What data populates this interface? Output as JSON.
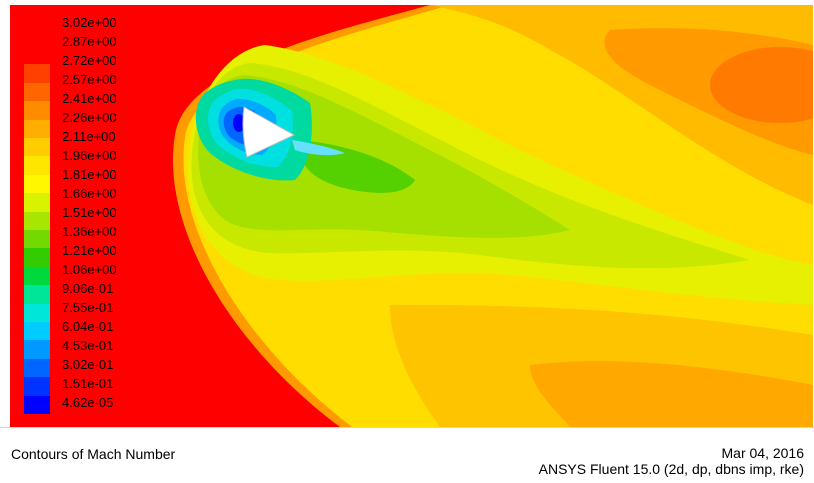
{
  "viewport": {
    "legend": {
      "levels": [
        "3.02e+00",
        "2.87e+00",
        "2.72e+00",
        "2.57e+00",
        "2.41e+00",
        "2.26e+00",
        "2.11e+00",
        "1.96e+00",
        "1.81e+00",
        "1.66e+00",
        "1.51e+00",
        "1.36e+00",
        "1.21e+00",
        "1.06e+00",
        "9.06e-01",
        "7.55e-01",
        "6.04e-01",
        "4.53e-01",
        "3.02e-01",
        "1.51e-01",
        "4.62e-05"
      ],
      "colors": [
        "#ff0000",
        "#ff4000",
        "#ff6600",
        "#ff8c00",
        "#ffad00",
        "#ffcc00",
        "#ffe600",
        "#fff700",
        "#d9f200",
        "#a6e600",
        "#73d900",
        "#33cc00",
        "#00d93d",
        "#00e699",
        "#00e6d9",
        "#00ccff",
        "#0099ff",
        "#0066ff",
        "#0033ff",
        "#0000ff"
      ]
    }
  },
  "footer": {
    "caption": "Contours of Mach Number",
    "date": "Mar 04, 2016",
    "solver": "ANSYS Fluent 15.0 (2d, dp, dbns imp, rke)"
  }
}
